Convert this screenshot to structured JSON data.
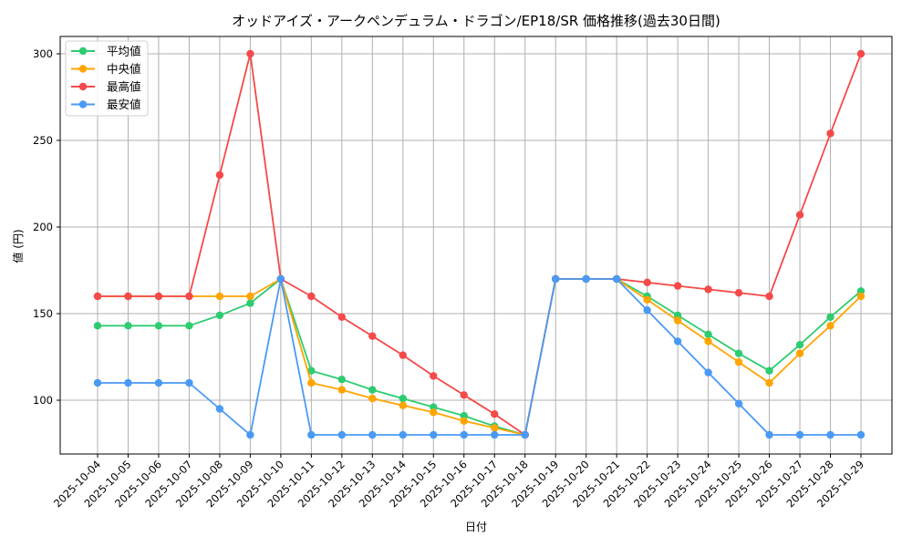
{
  "chart_data": {
    "type": "line",
    "title": "オッドアイズ・アークペンデュラム・ドラゴン/EP18/SR 価格推移(過去30日間)",
    "xlabel": "日付",
    "ylabel": "値 (円)",
    "ylim": [
      69,
      311
    ],
    "yticks": [
      100,
      150,
      200,
      250,
      300
    ],
    "grid": true,
    "legend_position": "upper left",
    "categories": [
      "2025-10-04",
      "2025-10-05",
      "2025-10-06",
      "2025-10-07",
      "2025-10-08",
      "2025-10-09",
      "2025-10-10",
      "2025-10-11",
      "2025-10-12",
      "2025-10-13",
      "2025-10-14",
      "2025-10-15",
      "2025-10-16",
      "2025-10-17",
      "2025-10-18",
      "2025-10-19",
      "2025-10-20",
      "2025-10-21",
      "2025-10-22",
      "2025-10-23",
      "2025-10-24",
      "2025-10-25",
      "2025-10-26",
      "2025-10-27",
      "2025-10-28",
      "2025-10-29"
    ],
    "series": [
      {
        "name": "平均値",
        "color": "#2ecc71",
        "values": [
          143,
          143,
          143,
          143,
          149,
          156,
          170,
          117,
          112,
          106,
          101,
          96,
          91,
          85,
          80,
          170,
          170,
          170,
          160,
          149,
          138,
          127,
          117,
          132,
          148,
          163
        ]
      },
      {
        "name": "中央値",
        "color": "#ffa500",
        "values": [
          160,
          160,
          160,
          160,
          160,
          160,
          170,
          110,
          106,
          101,
          97,
          93,
          88,
          84,
          80,
          170,
          170,
          170,
          158,
          146,
          134,
          122,
          110,
          127,
          143,
          160
        ]
      },
      {
        "name": "最高値",
        "color": "#f54a4a",
        "values": [
          160,
          160,
          160,
          160,
          230,
          300,
          170,
          160,
          148,
          137,
          126,
          114,
          103,
          92,
          80,
          170,
          170,
          170,
          168,
          166,
          164,
          162,
          160,
          207,
          254,
          300
        ]
      },
      {
        "name": "最安値",
        "color": "#4a9af5",
        "values": [
          110,
          110,
          110,
          110,
          95,
          80,
          170,
          80,
          80,
          80,
          80,
          80,
          80,
          80,
          80,
          170,
          170,
          170,
          152,
          134,
          116,
          98,
          80,
          80,
          80,
          80
        ]
      }
    ]
  }
}
